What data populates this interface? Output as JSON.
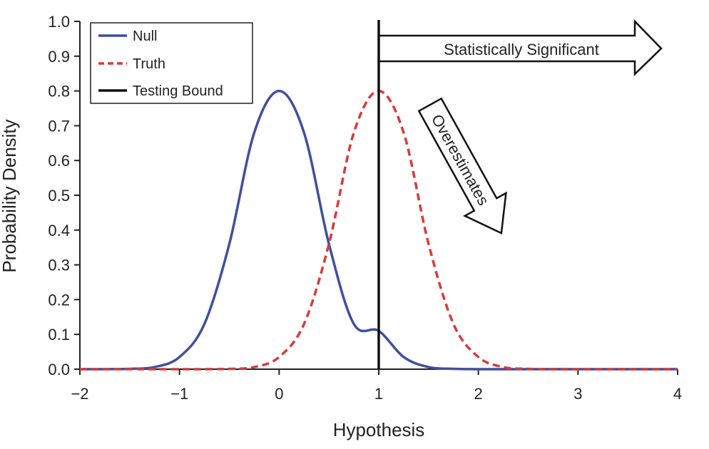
{
  "chart_data": {
    "type": "line",
    "xlabel": "Hypothesis",
    "ylabel": "Probability Density",
    "xlim": [
      -2,
      4
    ],
    "ylim": [
      0,
      1.0
    ],
    "x_ticks": [
      "−2",
      "−1",
      "0",
      "1",
      "2",
      "3",
      "4"
    ],
    "x_tick_values": [
      -2,
      -1,
      0,
      1,
      2,
      3,
      4
    ],
    "y_ticks": [
      "0.0",
      "0.1",
      "0.2",
      "0.3",
      "0.4",
      "0.5",
      "0.6",
      "0.7",
      "0.8",
      "0.9",
      "1.0"
    ],
    "y_tick_values": [
      0,
      0.1,
      0.2,
      0.3,
      0.4,
      0.5,
      0.6,
      0.7,
      0.8,
      0.9,
      1.0
    ],
    "grid": false,
    "legend_position": "top-left",
    "series": [
      {
        "name": "Null",
        "style": "solid",
        "color": "#3f4fa0",
        "x": [
          -2,
          -1.75,
          -1.5,
          -1.25,
          -1,
          -0.75,
          -0.5,
          -0.25,
          0,
          0.25,
          0.5,
          0.75,
          1,
          1.25,
          1.5,
          1.75,
          2,
          2.5,
          3,
          4
        ],
        "y": [
          0.0,
          0.0001,
          0.001,
          0.006,
          0.035,
          0.13,
          0.36,
          0.68,
          0.8,
          0.68,
          0.36,
          0.13,
          0.11,
          0.035,
          0.006,
          0.001,
          0.0001,
          0.0,
          0.0,
          0.0
        ]
      },
      {
        "name": "Truth",
        "style": "dashed",
        "color": "#d93a3a",
        "x": [
          -2,
          -1,
          -0.75,
          -0.5,
          -0.25,
          0,
          0.25,
          0.5,
          0.75,
          1,
          1.25,
          1.5,
          1.75,
          2,
          2.25,
          2.5,
          2.75,
          3,
          4
        ],
        "y": [
          0.0,
          0.0,
          0.0001,
          0.001,
          0.006,
          0.035,
          0.13,
          0.36,
          0.68,
          0.8,
          0.68,
          0.36,
          0.13,
          0.035,
          0.006,
          0.001,
          0.0001,
          0.0,
          0.0
        ]
      }
    ],
    "vertical_line": {
      "name": "Testing Bound",
      "x": 1,
      "color": "#111111"
    },
    "annotations": [
      {
        "text": "Statistically Significant",
        "kind": "right-arrow"
      },
      {
        "text": "Overestimates",
        "kind": "down-right-arrow"
      }
    ]
  }
}
